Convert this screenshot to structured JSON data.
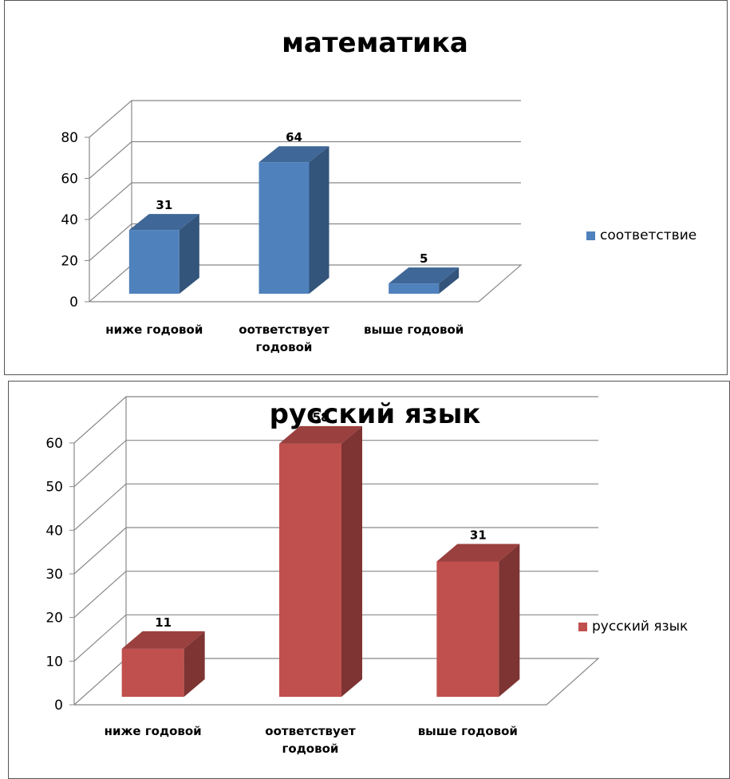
{
  "chart_data": [
    {
      "type": "bar",
      "title": "математика",
      "categories": [
        "ниже годовой",
        "оответствует годовой",
        "выше годовой"
      ],
      "series": [
        {
          "name": "соответствие",
          "color": "#4f81bd",
          "values": [
            31,
            64,
            5
          ]
        }
      ],
      "ylim": [
        0,
        80
      ],
      "yticks": [
        0,
        20,
        40,
        60,
        80
      ],
      "grid": true,
      "legend": "right"
    },
    {
      "type": "bar",
      "title": "русский язык",
      "categories": [
        "ниже годовой",
        "оответствует годовой",
        "выше годовой"
      ],
      "series": [
        {
          "name": "русский язык",
          "color": "#c0504d",
          "values": [
            11,
            58,
            31
          ]
        }
      ],
      "ylim": [
        0,
        60
      ],
      "yticks": [
        0,
        10,
        20,
        30,
        40,
        50,
        60
      ],
      "grid": true,
      "legend": "right"
    }
  ]
}
